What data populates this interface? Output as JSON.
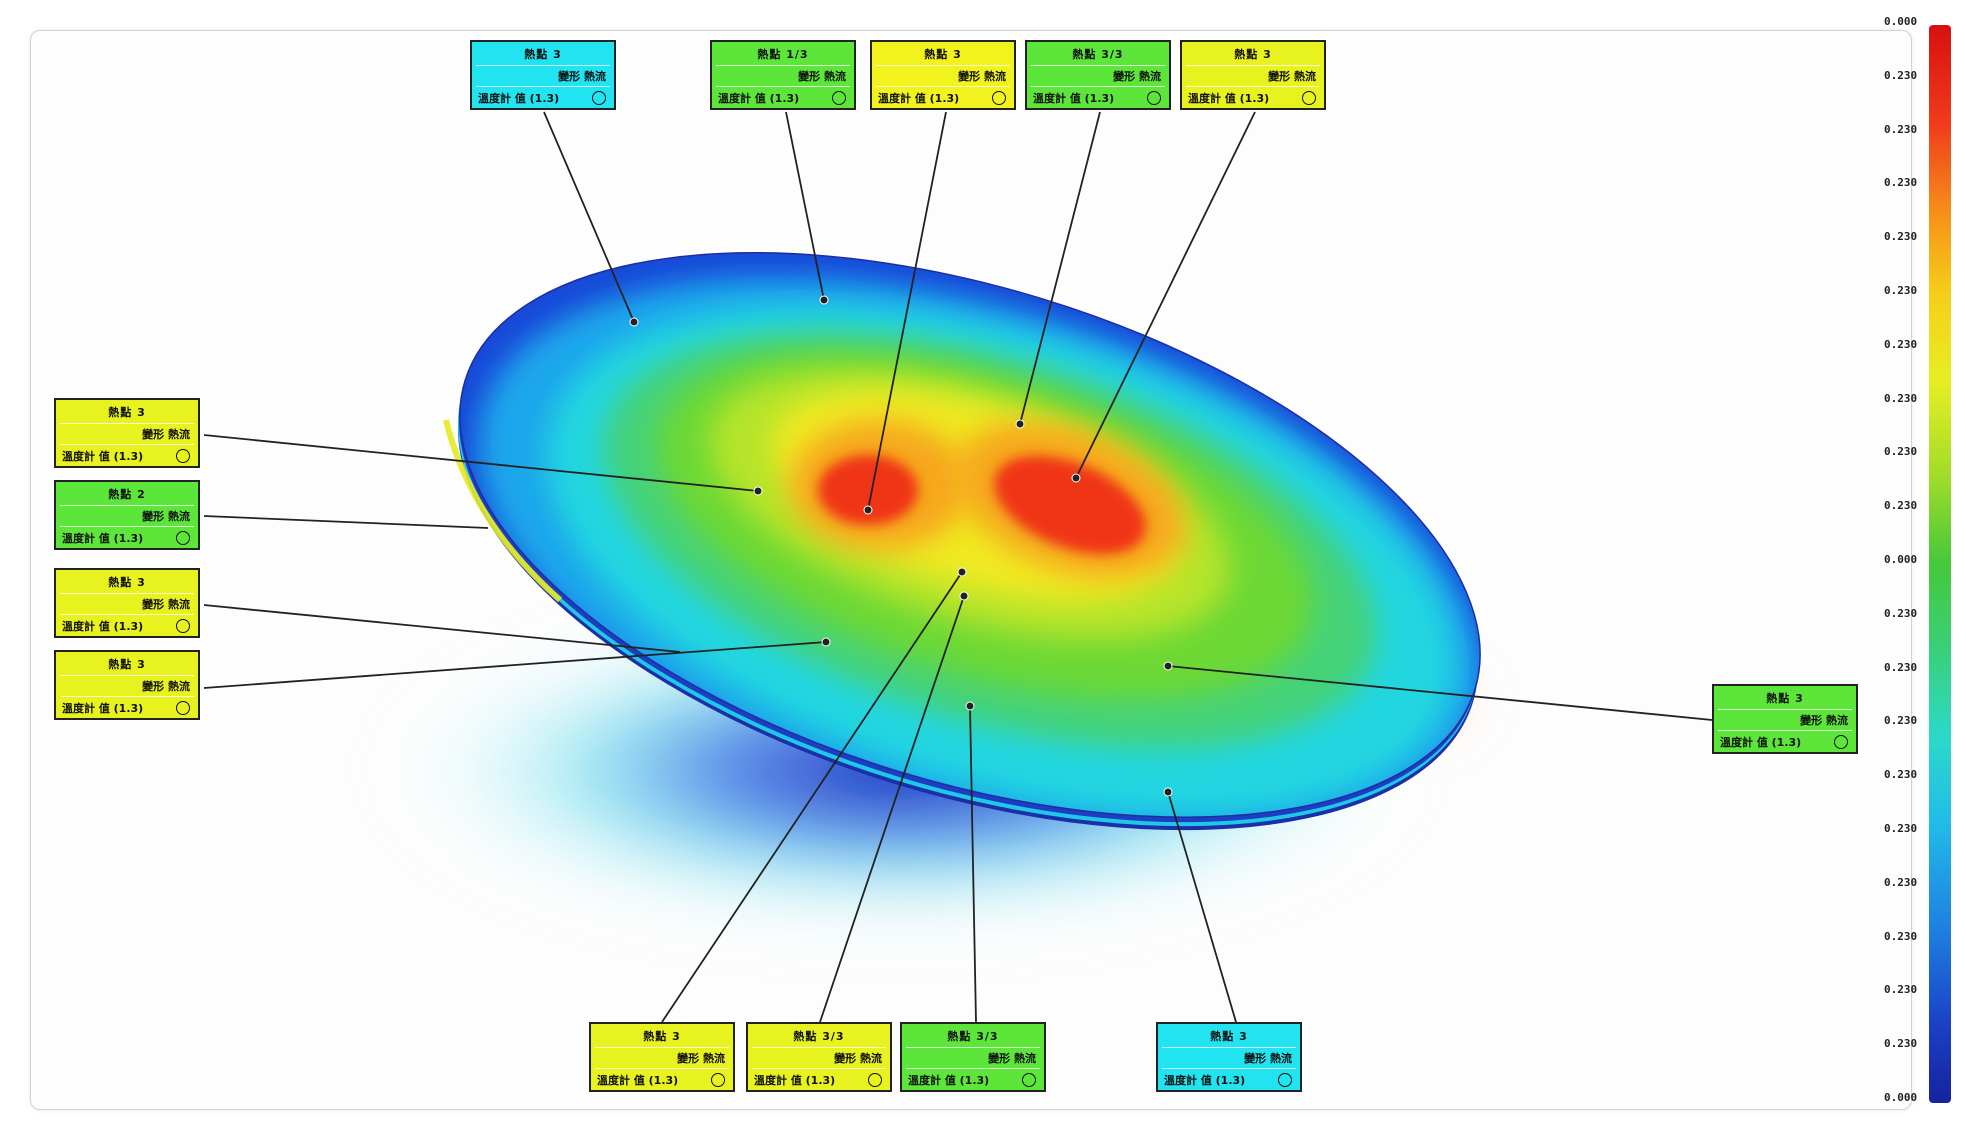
{
  "callouts": [
    {
      "color": "#22e4f0",
      "label": "熱點 3",
      "value": "變形 熱流",
      "reading": "溫度計 值 (1.3)"
    },
    {
      "color": "#5de63a",
      "label": "熱點 1/3",
      "value": "變形 熱流",
      "reading": "溫度計 值 (1.3)"
    },
    {
      "color": "#f2f21e",
      "label": "熱點 3",
      "value": "變形 熱流",
      "reading": "溫度計 值 (1.3)"
    },
    {
      "color": "#5de63a",
      "label": "熱點 3/3",
      "value": "變形 熱流",
      "reading": "溫度計 值 (1.3)"
    },
    {
      "color": "#e8f21e",
      "label": "熱點 3",
      "value": "變形 熱流",
      "reading": "溫度計 值 (1.3)"
    },
    {
      "color": "#e8f21e",
      "label": "熱點 3",
      "value": "變形 熱流",
      "reading": "溫度計 值 (1.3)"
    },
    {
      "color": "#5de63a",
      "label": "熱點 2",
      "value": "變形 熱流",
      "reading": "溫度計 值 (1.3)"
    },
    {
      "color": "#e8f21e",
      "label": "熱點 3",
      "value": "變形 熱流",
      "reading": "溫度計 值 (1.3)"
    },
    {
      "color": "#e8f21e",
      "label": "熱點 3",
      "value": "變形 熱流",
      "reading": "溫度計 值 (1.3)"
    },
    {
      "color": "#5de63a",
      "label": "熱點 3",
      "value": "變形 熱流",
      "reading": "溫度計 值 (1.3)"
    },
    {
      "color": "#e8f21e",
      "label": "熱點 3",
      "value": "變形 熱流",
      "reading": "溫度計 值 (1.3)"
    },
    {
      "color": "#e8f21e",
      "label": "熱點 3/3",
      "value": "變形 熱流",
      "reading": "溫度計 值 (1.3)"
    },
    {
      "color": "#5de63a",
      "label": "熱點 3/3",
      "value": "變形 熱流",
      "reading": "溫度計 值 (1.3)"
    },
    {
      "color": "#22e4f0",
      "label": "熱點 3",
      "value": "變形 熱流",
      "reading": "溫度計 值 (1.3)"
    }
  ],
  "colorbar": {
    "ticks": [
      "0.000",
      "0.230",
      "0.230",
      "0.230",
      "0.230",
      "0.230",
      "0.230",
      "0.230",
      "0.230",
      "0.230",
      "0.000",
      "0.230",
      "0.230",
      "0.230",
      "0.230",
      "0.230",
      "0.230",
      "0.230",
      "0.230",
      "0.230",
      "0.000"
    ]
  }
}
